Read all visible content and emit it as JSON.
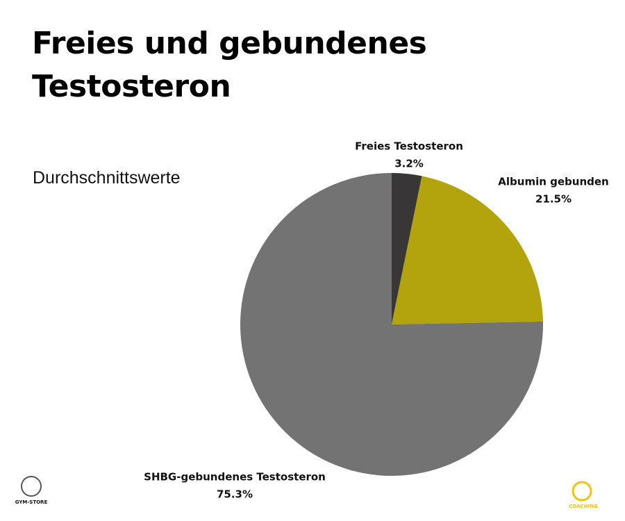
{
  "chart_data": {
    "type": "pie",
    "title": "Freies und gebundenes Testosteron",
    "subtitle": "Durchschnittswerte",
    "categories": [
      "Freies Testosteron",
      "Albumin gebunden",
      "SHBG-gebundenes Testosteron"
    ],
    "values": [
      3.2,
      21.5,
      75.3
    ],
    "value_labels": [
      "3.2%",
      "21.5%",
      "75.3%"
    ],
    "colors": [
      "#383636",
      "#b3a40d",
      "#737373"
    ]
  },
  "logos": {
    "left": "GYM-STORE",
    "right": "COACHING"
  }
}
